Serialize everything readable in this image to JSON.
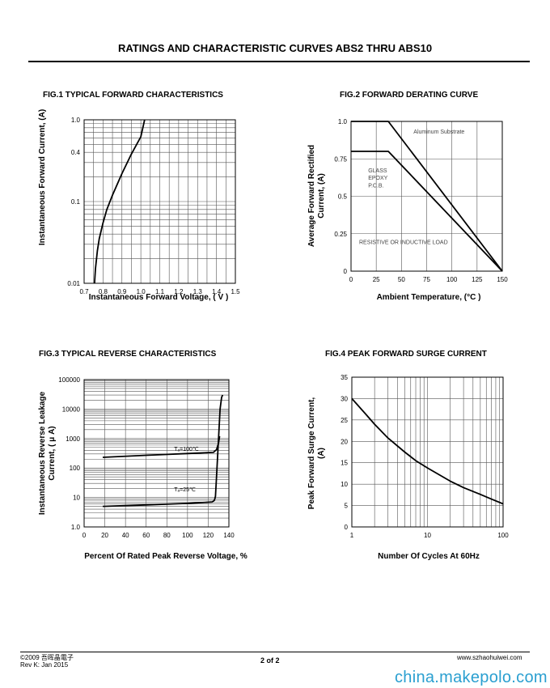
{
  "page": {
    "title": "RATINGS AND CHARACTERISTIC CURVES ABS2 THRU ABS10"
  },
  "chart_data": [
    {
      "id": "fig1",
      "type": "line",
      "title": "FIG.1 TYPICAL FORWARD CHARACTERISTICS",
      "xlabel": "Instantaneous Forward Voltage, ( V )",
      "ylabel": "Instantaneous Forward Current, (A)",
      "xlim": [
        0.7,
        1.5
      ],
      "ylim": [
        0.01,
        1.0
      ],
      "yscale": "log",
      "x_ticks": [
        "0.7",
        "0.8",
        "0.9",
        "1.0",
        "1.1",
        "1.2",
        "1.3",
        "1.4",
        "1.5"
      ],
      "y_ticks": [
        "0.01",
        "0.1",
        "0.4",
        "1.0"
      ],
      "grid": true,
      "series": [
        {
          "x": [
            0.755,
            0.76,
            0.77,
            0.78,
            0.8,
            0.82,
            0.85,
            0.9,
            0.95,
            1.0,
            1.02
          ],
          "y": [
            0.01,
            0.015,
            0.025,
            0.035,
            0.055,
            0.08,
            0.12,
            0.22,
            0.38,
            0.62,
            1.0
          ]
        }
      ]
    },
    {
      "id": "fig2",
      "type": "line",
      "title": "FIG.2 FORWARD DERATING CURVE",
      "xlabel": "Ambient  Temperature, (°C )",
      "ylabel": "Average Forward Rectified Current, (A)",
      "xlim": [
        0,
        150
      ],
      "ylim": [
        0,
        1.0
      ],
      "x_ticks": [
        "0",
        "25",
        "50",
        "75",
        "100",
        "125",
        "150"
      ],
      "y_ticks": [
        "0",
        "0.25",
        "0.5",
        "0.75",
        "1.0"
      ],
      "grid": true,
      "series": [
        {
          "x": [
            0,
            37,
            150
          ],
          "y": [
            1.0,
            1.0,
            0
          ]
        },
        {
          "x": [
            0,
            37,
            150
          ],
          "y": [
            0.8,
            0.8,
            0
          ]
        }
      ],
      "annotations": [
        "Aluminum Substrate",
        "GLASS",
        "EPOXY",
        "P.C.B.",
        "RESISTIVE OR INDUCTIVE LOAD"
      ]
    },
    {
      "id": "fig3",
      "type": "line",
      "title": "FIG.3 TYPICAL REVERSE CHARACTERISTICS",
      "xlabel": "Percent Of Rated Peak Reverse Voltage, %",
      "ylabel": "Instantaneous Reverse  Leakage Current, ( μ A)",
      "xlim": [
        0,
        140
      ],
      "ylim": [
        1.0,
        100000
      ],
      "yscale": "log",
      "x_ticks": [
        "0",
        "20",
        "40",
        "60",
        "80",
        "100",
        "120",
        "140"
      ],
      "y_ticks": [
        "1.0",
        "10",
        "100",
        "1000",
        "10000",
        "100000"
      ],
      "grid": true,
      "series": [
        {
          "x": [
            18,
            60,
            100,
            125,
            128,
            130,
            131
          ],
          "y": [
            230,
            270,
            310,
            340,
            420,
            700,
            1200
          ]
        },
        {
          "x": [
            18,
            60,
            100,
            124,
            126,
            127,
            128,
            130,
            131.5,
            133,
            134
          ],
          "y": [
            5,
            5.6,
            6.3,
            7,
            8,
            11,
            50,
            1000,
            10000,
            25000,
            30000
          ]
        }
      ],
      "annotations": [
        "Tₐ=100℃",
        "Tₐ=25℃"
      ]
    },
    {
      "id": "fig4",
      "type": "line",
      "title": "FIG.4 PEAK FORWARD SURGE CURRENT",
      "xlabel": "Number Of Cycles At 60Hz",
      "ylabel": "Peak Forward  Surge  Current, (A)",
      "xlim": [
        1,
        100
      ],
      "ylim": [
        0,
        35
      ],
      "xscale": "log",
      "x_ticks": [
        "1",
        "10",
        "100"
      ],
      "y_ticks": [
        "0",
        "5",
        "10",
        "15",
        "20",
        "25",
        "30",
        "35"
      ],
      "grid": true,
      "series": [
        {
          "x": [
            1,
            1.5,
            2,
            3,
            5,
            7,
            10,
            20,
            30,
            50,
            70,
            100
          ],
          "y": [
            30,
            26.5,
            24,
            20.8,
            17.5,
            15.5,
            13.8,
            10.7,
            9.2,
            7.6,
            6.5,
            5.4
          ]
        }
      ]
    }
  ],
  "footer": {
    "left_line1": "©2009  吾晖晶電子",
    "left_line2": "Rev K:  Jan  2015",
    "page": "2 of  2",
    "website": "www.szhaohuiwei.com"
  },
  "watermark": "china.makepolo.com"
}
